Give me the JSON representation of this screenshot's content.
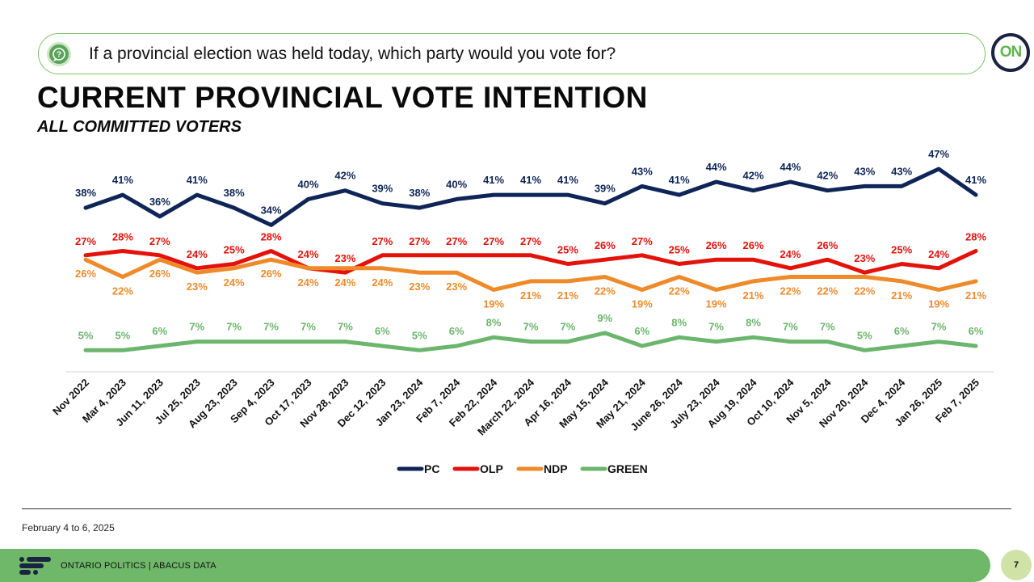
{
  "header": {
    "question": "If a provincial election was held today, which party would you vote for?",
    "logo_text": "ON",
    "title": "CURRENT PROVINCIAL VOTE INTENTION",
    "subtitle": "ALL COMMITTED VOTERS"
  },
  "footer": {
    "date_note": "February 4 to 6, 2025",
    "brand_text": "ONTARIO POLITICS  |  ABACUS DATA",
    "page_number": "7"
  },
  "colors": {
    "PC": "#0f2557",
    "OLP": "#e3120b",
    "NDP": "#ef8a2a",
    "GREEN": "#6bb56c",
    "accent": "#6fb86a"
  },
  "chart_data": {
    "type": "line",
    "title": "CURRENT PROVINCIAL VOTE INTENTION",
    "subtitle": "ALL COMMITTED VOTERS",
    "xlabel": "",
    "ylabel": "",
    "value_suffix": "%",
    "ylim": [
      0,
      50
    ],
    "grid": false,
    "legend_position": "bottom",
    "categories": [
      "Nov 2022",
      "Mar 4, 2023",
      "Jun 11, 2023",
      "Jul 25, 2023",
      "Aug 23, 2023",
      "Sep 4, 2023",
      "Oct 17, 2023",
      "Nov 28, 2023",
      "Dec 12, 2023",
      "Jan 23, 2024",
      "Feb 7, 2024",
      "Feb 22, 2024",
      "March 22, 2024",
      "Apr 16, 2024",
      "May 15, 2024",
      "May 21, 2024",
      "June 26, 2024",
      "July 23, 2024",
      "Aug 19, 2024",
      "Oct 10, 2024",
      "Nov 5, 2024",
      "Nov 20, 2024",
      "Dec 4, 2024",
      "Jan 26, 2025",
      "Feb 7, 2025"
    ],
    "series": [
      {
        "name": "PC",
        "values": [
          38,
          41,
          36,
          41,
          38,
          34,
          40,
          42,
          39,
          38,
          40,
          41,
          41,
          41,
          39,
          43,
          41,
          44,
          42,
          44,
          42,
          43,
          43,
          47,
          41
        ]
      },
      {
        "name": "OLP",
        "values": [
          27,
          28,
          27,
          24,
          25,
          28,
          24,
          23,
          27,
          27,
          27,
          27,
          27,
          25,
          26,
          27,
          25,
          26,
          26,
          24,
          26,
          23,
          25,
          24,
          28
        ]
      },
      {
        "name": "NDP",
        "values": [
          26,
          22,
          26,
          23,
          24,
          26,
          24,
          24,
          24,
          23,
          23,
          19,
          21,
          21,
          22,
          19,
          22,
          19,
          21,
          22,
          22,
          22,
          21,
          19,
          21
        ]
      },
      {
        "name": "GREEN",
        "values": [
          5,
          5,
          6,
          7,
          7,
          7,
          7,
          7,
          6,
          5,
          6,
          8,
          7,
          7,
          9,
          6,
          8,
          7,
          8,
          7,
          7,
          5,
          6,
          7,
          6
        ]
      }
    ]
  }
}
